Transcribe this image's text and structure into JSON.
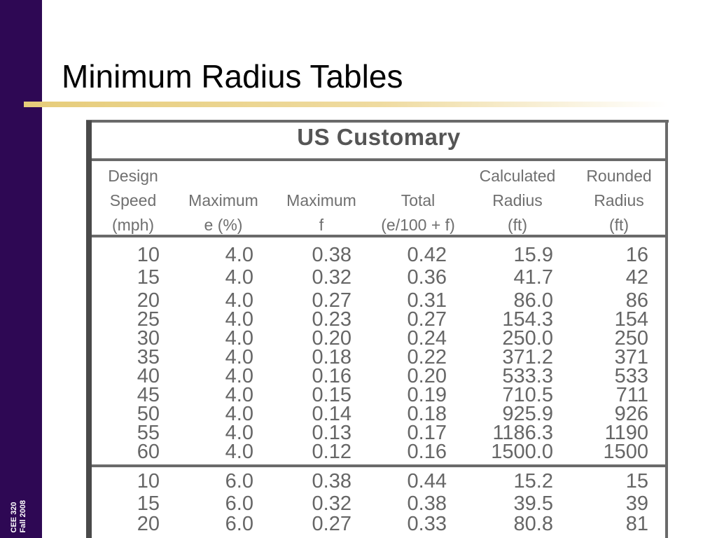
{
  "sidebar": {
    "line1": "CEE 320",
    "line2": "Fall 2008"
  },
  "slide": {
    "title": "Minimum Radius Tables"
  },
  "table": {
    "section_title": "US Customary",
    "headers": [
      [
        "Design",
        "Speed",
        "(mph)"
      ],
      [
        "",
        "Maximum",
        "e (%)"
      ],
      [
        "",
        "Maximum",
        "f"
      ],
      [
        "",
        "Total",
        "(e/100 + f)"
      ],
      [
        "Calculated",
        "Radius",
        "(ft)"
      ],
      [
        "Rounded",
        "Radius",
        "(ft)"
      ]
    ],
    "rows": [
      [
        "10",
        "4.0",
        "0.38",
        "0.42",
        "15.9",
        "16"
      ],
      [
        "15",
        "4.0",
        "0.32",
        "0.36",
        "41.7",
        "42"
      ],
      [
        "20",
        "4.0",
        "0.27",
        "0.31",
        "86.0",
        "86"
      ],
      [
        "25",
        "4.0",
        "0.23",
        "0.27",
        "154.3",
        "154"
      ],
      [
        "30",
        "4.0",
        "0.20",
        "0.24",
        "250.0",
        "250"
      ],
      [
        "35",
        "4.0",
        "0.18",
        "0.22",
        "371.2",
        "371"
      ],
      [
        "40",
        "4.0",
        "0.16",
        "0.20",
        "533.3",
        "533"
      ],
      [
        "45",
        "4.0",
        "0.15",
        "0.19",
        "710.5",
        "711"
      ],
      [
        "50",
        "4.0",
        "0.14",
        "0.18",
        "925.9",
        "926"
      ],
      [
        "55",
        "4.0",
        "0.13",
        "0.17",
        "1186.3",
        "1190"
      ],
      [
        "60",
        "4.0",
        "0.12",
        "0.16",
        "1500.0",
        "1500"
      ],
      [
        "10",
        "6.0",
        "0.38",
        "0.44",
        "15.2",
        "15"
      ],
      [
        "15",
        "6.0",
        "0.32",
        "0.38",
        "39.5",
        "39"
      ],
      [
        "20",
        "6.0",
        "0.27",
        "0.33",
        "80.8",
        "81"
      ]
    ]
  }
}
